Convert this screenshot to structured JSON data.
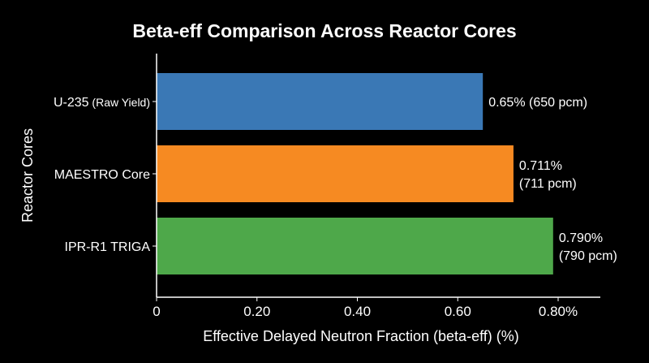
{
  "chart_data": {
    "type": "bar",
    "orientation": "horizontal",
    "title": "Beta-eff Comparison Across Reactor Cores",
    "xlabel": "Effective Delayed Neutron Fraction (beta-eff) (%)",
    "ylabel": "Reactor Cores",
    "xlim": [
      0,
      0.8
    ],
    "xticks": [
      {
        "value": 0,
        "label": "0"
      },
      {
        "value": 0.2,
        "label": "0.20"
      },
      {
        "value": 0.4,
        "label": "0.40"
      },
      {
        "value": 0.6,
        "label": "0.60"
      },
      {
        "value": 0.8,
        "label": "0.80%"
      }
    ],
    "grid": false,
    "bars": [
      {
        "category": "U-235",
        "category_note": "(Raw Yield)",
        "value": 0.65,
        "label_lines": [
          "0.65% (650 pcm)"
        ],
        "color": "#3a78b5"
      },
      {
        "category": "MAESTRO Core",
        "category_note": "",
        "value": 0.711,
        "label_lines": [
          "0.711%",
          "(711 pcm)"
        ],
        "color": "#f68a22"
      },
      {
        "category": "IPR-R1 TRIGA",
        "category_note": "",
        "value": 0.79,
        "label_lines": [
          "0.790%",
          "(790 pcm)"
        ],
        "color": "#4ea84a"
      }
    ]
  }
}
